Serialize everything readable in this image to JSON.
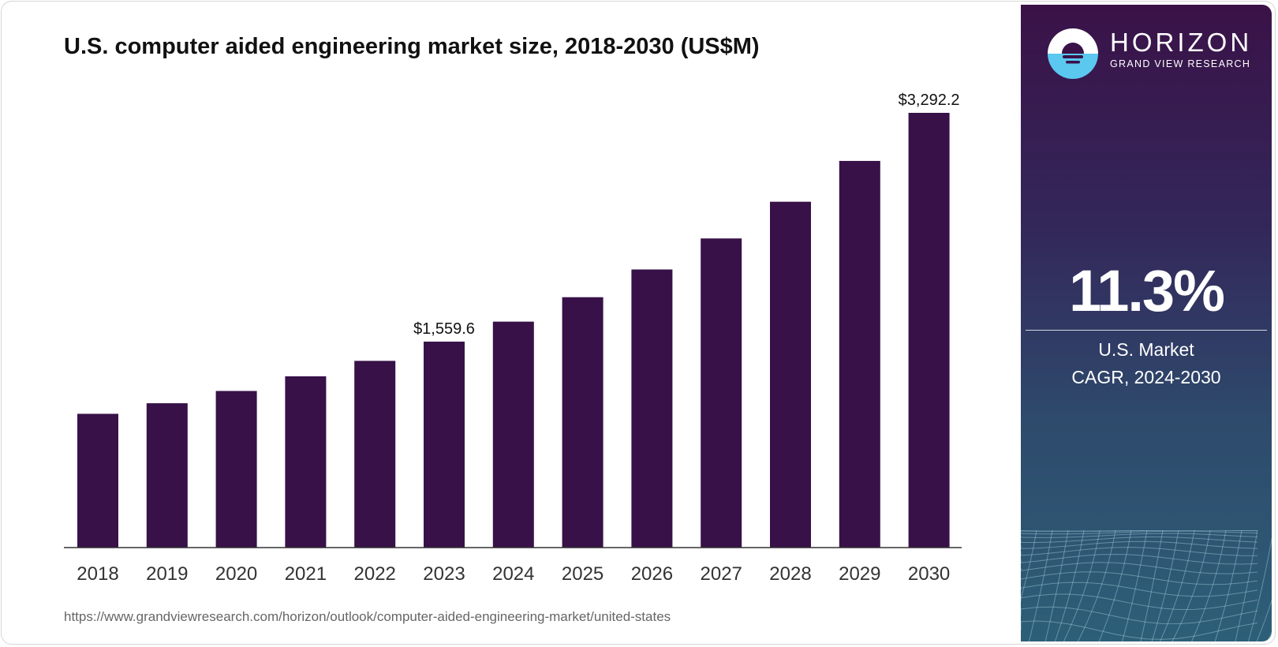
{
  "chart_data": {
    "type": "bar",
    "title": "U.S. computer aided engineering market size, 2018-2030 (US$M)",
    "categories": [
      "2018",
      "2019",
      "2020",
      "2021",
      "2022",
      "2023",
      "2024",
      "2025",
      "2026",
      "2027",
      "2028",
      "2029",
      "2030"
    ],
    "values": [
      1013,
      1093,
      1186,
      1297,
      1414,
      1559.6,
      1711,
      1896,
      2106,
      2341,
      2619,
      2928,
      3292.2
    ],
    "data_labels": {
      "5": "$1,559.6",
      "12": "$3,292.2"
    },
    "xlabel": "",
    "ylabel": "",
    "ylim": [
      0,
      3292.2
    ],
    "grid": false,
    "bar_color": "#371148"
  },
  "header": {
    "title": "U.S. computer aided engineering market size, 2018-2030 (US$M)"
  },
  "footer": {
    "url": "https://www.grandviewresearch.com/horizon/outlook/computer-aided-engineering-market/united-states"
  },
  "panel": {
    "brand": "HORIZON",
    "brand_sub": "GRAND VIEW RESEARCH",
    "cagr_value": "11.3%",
    "cagr_label_1": "U.S. Market",
    "cagr_label_2": "CAGR, 2024-2030"
  }
}
